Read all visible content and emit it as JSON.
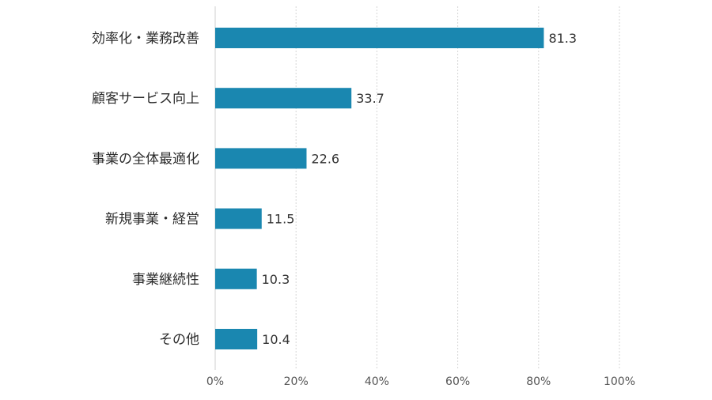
{
  "chart_data": {
    "type": "bar",
    "orientation": "horizontal",
    "title": "",
    "xlabel": "",
    "ylabel": "",
    "categories": [
      "効率化・業務改善",
      "顧客サービス向上",
      "事業の全体最適化",
      "新規事業・経営",
      "事業継続性",
      "その他"
    ],
    "values": [
      81.3,
      33.7,
      22.6,
      11.5,
      10.3,
      10.4
    ],
    "xlim": [
      0,
      100
    ],
    "xticks": [
      0,
      20,
      40,
      60,
      80,
      100
    ],
    "xtick_labels": [
      "0%",
      "20%",
      "40%",
      "60%",
      "80%",
      "100%"
    ],
    "grid": true,
    "legend": "none",
    "bar_color": "#1a87b0"
  }
}
